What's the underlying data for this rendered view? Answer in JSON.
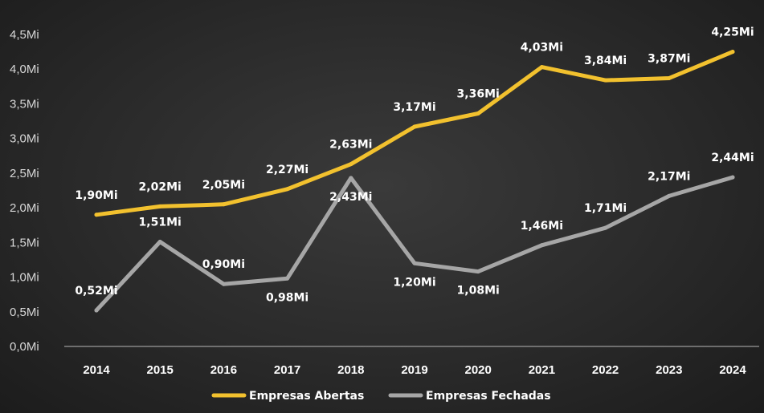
{
  "chart_data": {
    "type": "line",
    "title": "",
    "xlabel": "",
    "ylabel": "",
    "categories": [
      "2014",
      "2015",
      "2016",
      "2017",
      "2018",
      "2019",
      "2020",
      "2021",
      "2022",
      "2023",
      "2024"
    ],
    "ylim": [
      0,
      4.5
    ],
    "yticks": [
      0,
      0.5,
      1.0,
      1.5,
      2.0,
      2.5,
      3.0,
      3.5,
      4.0,
      4.5
    ],
    "ytick_labels": [
      "0,0Mi",
      "0,5Mi",
      "1,0Mi",
      "1,5Mi",
      "2,0Mi",
      "2,5Mi",
      "3,0Mi",
      "3,5Mi",
      "4,0Mi",
      "4,5Mi"
    ],
    "grid": false,
    "legend_position": "bottom-center",
    "series": [
      {
        "name": "Empresas Abertas",
        "color": "#f2c12e",
        "values": [
          1.9,
          2.02,
          2.05,
          2.27,
          2.63,
          3.17,
          3.36,
          4.03,
          3.84,
          3.87,
          4.25
        ],
        "labels": [
          "1,90Mi",
          "2,02Mi",
          "2,05Mi",
          "2,27Mi",
          "2,63Mi",
          "3,17Mi",
          "3,36Mi",
          "4,03Mi",
          "3,84Mi",
          "3,87Mi",
          "4,25Mi"
        ]
      },
      {
        "name": "Empresas Fechadas",
        "color": "#a6a6a6",
        "values": [
          0.52,
          1.51,
          0.9,
          0.98,
          2.43,
          1.2,
          1.08,
          1.46,
          1.71,
          2.17,
          2.44
        ],
        "labels": [
          "0,52Mi",
          "1,51Mi",
          "0,90Mi",
          "0,98Mi",
          "2,43Mi",
          "1,20Mi",
          "1,08Mi",
          "1,46Mi",
          "1,71Mi",
          "2,17Mi",
          "2,44Mi"
        ]
      }
    ]
  }
}
